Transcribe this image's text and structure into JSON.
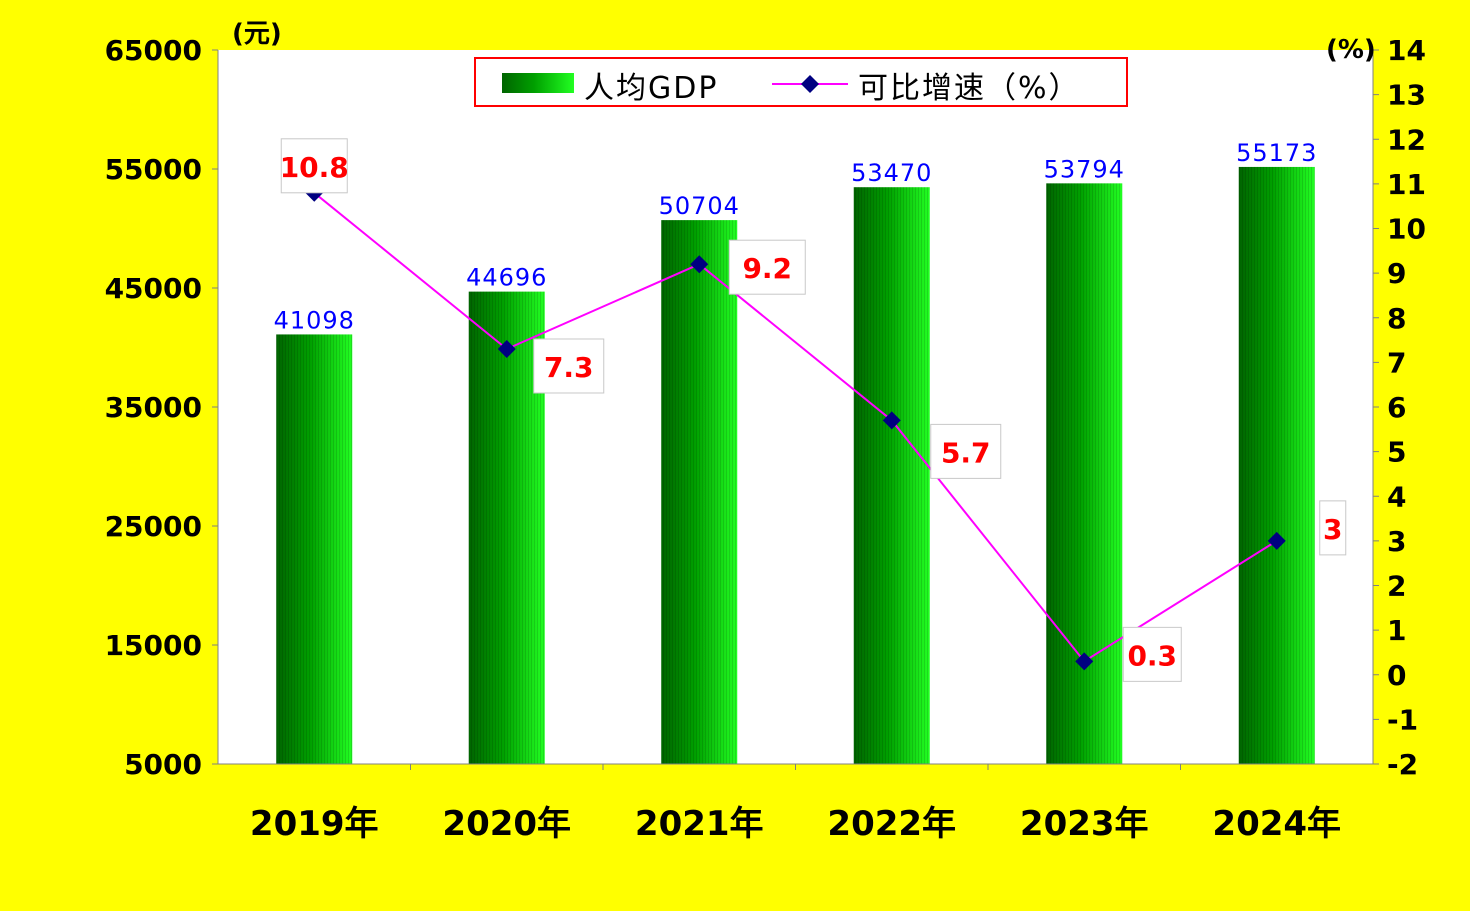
{
  "chart_data": {
    "type": "bar",
    "categories": [
      "2019年",
      "2020年",
      "2021年",
      "2022年",
      "2023年",
      "2024年"
    ],
    "series": [
      {
        "name": "人均GDP",
        "type": "bar",
        "axis": "left",
        "values": [
          41098,
          44696,
          50704,
          53470,
          53794,
          55173
        ],
        "labels": [
          "41098",
          "44696",
          "50704",
          "53470",
          "53794",
          "55173"
        ],
        "color": "#00CC00"
      },
      {
        "name": "可比增速（%）",
        "type": "line",
        "axis": "right",
        "values": [
          10.8,
          7.3,
          9.2,
          5.7,
          0.3,
          3
        ],
        "labels": [
          "10.8",
          "7.3",
          "9.2",
          "5.7",
          "0.3",
          "3"
        ],
        "line_color": "#FF00FF",
        "marker_color": "#000080"
      }
    ],
    "left_axis": {
      "unit": "(元)",
      "min": 5000,
      "max": 65000,
      "ticks": [
        "5000",
        "15000",
        "25000",
        "35000",
        "45000",
        "55000",
        "65000"
      ]
    },
    "right_axis": {
      "unit": "(%)",
      "min": -2,
      "max": 14,
      "ticks": [
        "-2",
        "-1",
        "0",
        "1",
        "2",
        "3",
        "4",
        "5",
        "6",
        "7",
        "8",
        "9",
        "10",
        "11",
        "12",
        "13",
        "14"
      ]
    },
    "legend": {
      "placement": "top-center",
      "border_color": "#FF0000"
    },
    "grid": false,
    "background_color": "#FFFF00",
    "plot_background": "#FFFFFF",
    "bar_label_color": "#0000FF",
    "growth_label_color": "#FF0000"
  }
}
